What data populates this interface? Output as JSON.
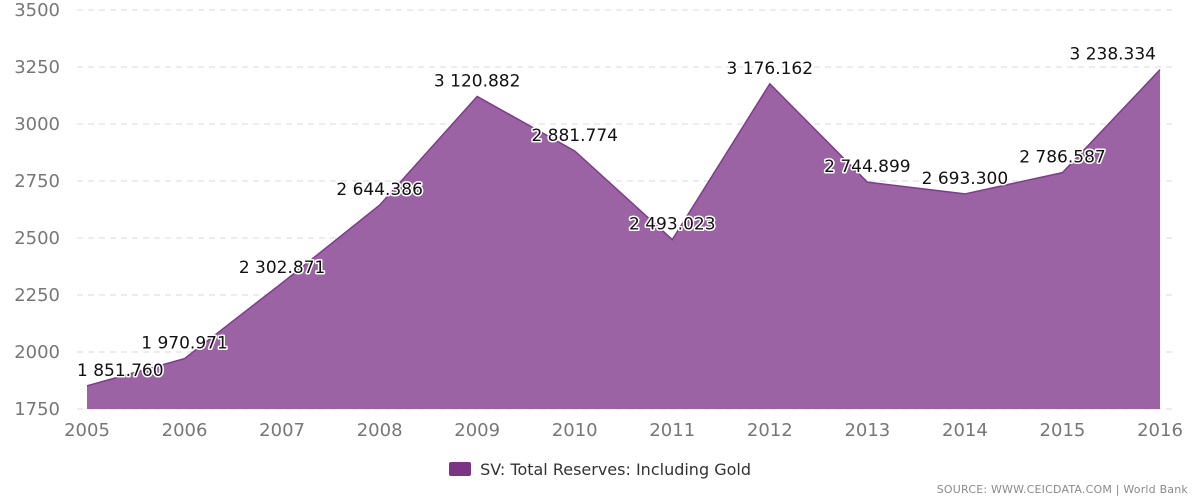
{
  "colors": {
    "series_fill": "#9b62a4",
    "series_line": "#7d3e88",
    "legend_swatch": "#7b3585"
  },
  "chart_data": {
    "type": "area",
    "x": [
      "2005",
      "2006",
      "2007",
      "2008",
      "2009",
      "2010",
      "2011",
      "2012",
      "2013",
      "2014",
      "2015",
      "2016"
    ],
    "series": [
      {
        "name": "SV: Total Reserves: Including Gold",
        "values": [
          1851.76,
          1970.971,
          2302.871,
          2644.386,
          3120.882,
          2881.774,
          2493.023,
          3176.162,
          2744.899,
          2693.3,
          2786.587,
          3238.334
        ],
        "labels": [
          "1 851.760",
          "1 970.971",
          "2 302.871",
          "2 644.386",
          "3 120.882",
          "2 881.774",
          "2 493.023",
          "3 176.162",
          "2 744.899",
          "2 693.300",
          "2 786.587",
          "3 238.334"
        ]
      }
    ],
    "ylim": [
      1750,
      3500
    ],
    "yticks": [
      1750,
      2000,
      2250,
      2500,
      2750,
      3000,
      3250,
      3500
    ],
    "grid": true,
    "legend_position": "bottom-center"
  },
  "legend": {
    "label": "SV: Total Reserves: Including Gold"
  },
  "source": {
    "text": "SOURCE: WWW.CEICDATA.COM | World Bank"
  }
}
